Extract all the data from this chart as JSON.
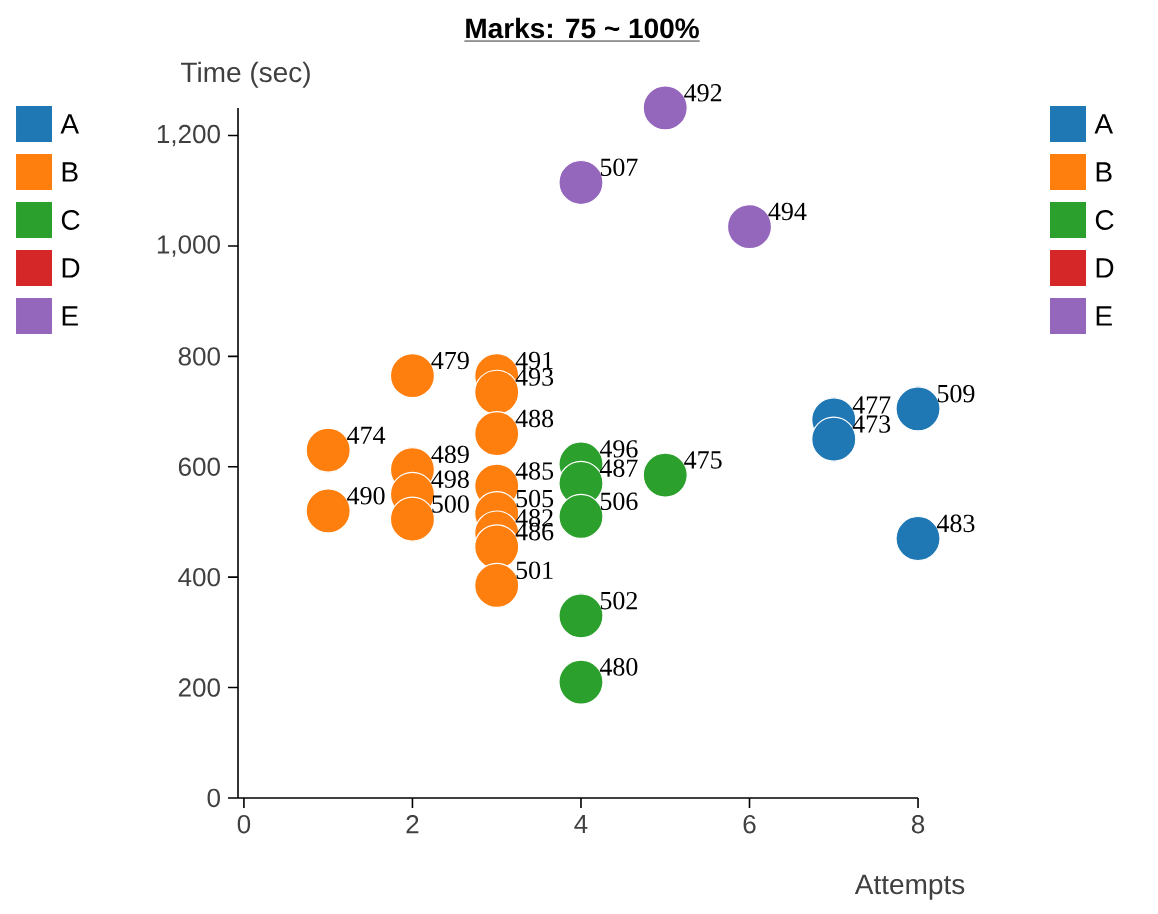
{
  "chart_data": {
    "type": "scatter",
    "title": "Marks: 75 ~ 100%",
    "xlabel": "Attempts",
    "ylabel": "Time (sec)",
    "xlim": [
      -0.07,
      8
    ],
    "ylim": [
      0,
      1250
    ],
    "xticks": [
      0,
      2,
      4,
      6,
      8
    ],
    "yticks": [
      0,
      200,
      400,
      600,
      800,
      {
        "value": 1000,
        "label": "1,000"
      },
      {
        "value": 1200,
        "label": "1,200"
      }
    ],
    "grid": false,
    "legend": "right",
    "series": [
      {
        "name": "A",
        "color": "#1f77b4",
        "x": [
          7,
          7,
          8,
          8
        ],
        "values": [
          685,
          650,
          705,
          470
        ]
      },
      {
        "name": "B",
        "color": "#ff7f0e",
        "x": [
          1,
          1,
          2,
          2,
          2,
          2,
          3,
          3,
          3,
          3,
          3,
          3,
          3,
          3
        ],
        "values": [
          630,
          520,
          765,
          595,
          550,
          505,
          765,
          735,
          660,
          565,
          515,
          480,
          455,
          385
        ]
      },
      {
        "name": "C",
        "color": "#2ca02c",
        "x": [
          4,
          4,
          4,
          4,
          4,
          5
        ],
        "values": [
          605,
          570,
          510,
          330,
          210,
          585
        ]
      },
      {
        "name": "D",
        "color": "#d62728"
      },
      {
        "name": "E",
        "color": "#9467bd",
        "x": [
          4,
          5,
          6
        ],
        "values": [
          1115,
          1250,
          1035
        ]
      }
    ],
    "annotations": [
      {
        "text": "477",
        "x": 7,
        "y": 685
      },
      {
        "text": "473",
        "x": 7,
        "y": 650
      },
      {
        "text": "509",
        "x": 8,
        "y": 705
      },
      {
        "text": "483",
        "x": 8,
        "y": 470
      },
      {
        "text": "474",
        "x": 1,
        "y": 630
      },
      {
        "text": "490",
        "x": 1,
        "y": 520
      },
      {
        "text": "479",
        "x": 2,
        "y": 765
      },
      {
        "text": "489",
        "x": 2,
        "y": 595
      },
      {
        "text": "498",
        "x": 2,
        "y": 550
      },
      {
        "text": "500",
        "x": 2,
        "y": 505
      },
      {
        "text": "491",
        "x": 3,
        "y": 765
      },
      {
        "text": "493",
        "x": 3,
        "y": 735
      },
      {
        "text": "488",
        "x": 3,
        "y": 660
      },
      {
        "text": "485",
        "x": 3,
        "y": 565
      },
      {
        "text": "505",
        "x": 3,
        "y": 515
      },
      {
        "text": "482",
        "x": 3,
        "y": 480
      },
      {
        "text": "486",
        "x": 3,
        "y": 455
      },
      {
        "text": "501",
        "x": 3,
        "y": 385
      },
      {
        "text": "496",
        "x": 4,
        "y": 605
      },
      {
        "text": "487",
        "x": 4,
        "y": 570
      },
      {
        "text": "506",
        "x": 4,
        "y": 510
      },
      {
        "text": "502",
        "x": 4,
        "y": 330
      },
      {
        "text": "480",
        "x": 4,
        "y": 210
      },
      {
        "text": "475",
        "x": 5,
        "y": 585
      },
      {
        "text": "507",
        "x": 4,
        "y": 1115
      },
      {
        "text": "492",
        "x": 5,
        "y": 1250
      },
      {
        "text": "494",
        "x": 6,
        "y": 1035
      }
    ]
  }
}
